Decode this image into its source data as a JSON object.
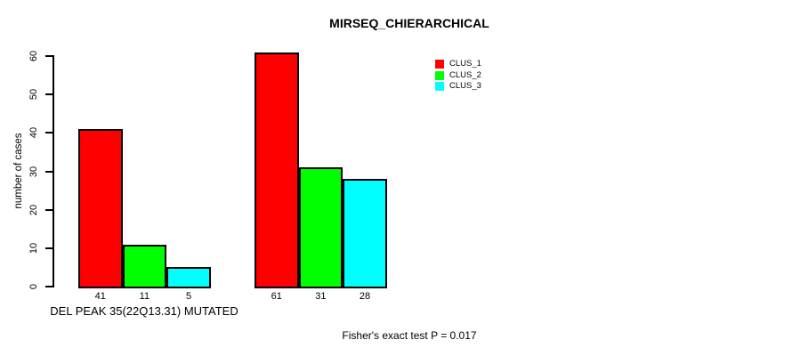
{
  "title": "MIRSEQ_CHIERARCHICAL",
  "y_axis": {
    "label": "number of cases",
    "tick_labels": [
      "0",
      "10",
      "20",
      "30",
      "40",
      "50",
      "60"
    ]
  },
  "footer_note": "Fisher's exact test P = 0.017",
  "chart_data": {
    "type": "bar",
    "title": "MIRSEQ_CHIERARCHICAL",
    "xlabel": "",
    "ylabel": "number of cases",
    "ylim": [
      0,
      60
    ],
    "yticks": [
      0,
      10,
      20,
      30,
      40,
      50,
      60
    ],
    "grid": false,
    "legend_position": "top-right",
    "bar_value_labels_shown": true,
    "series": [
      {
        "name": "CLUS_1",
        "color": "#FF0000",
        "values": [
          41,
          61
        ]
      },
      {
        "name": "CLUS_2",
        "color": "#00FF00",
        "values": [
          11,
          31
        ]
      },
      {
        "name": "CLUS_3",
        "color": "#00FFFF",
        "values": [
          5,
          28
        ]
      }
    ],
    "groups": [
      {
        "label": "DEL PEAK 35(22Q13.31) MUTATED",
        "values": [
          41,
          11,
          5
        ]
      },
      {
        "label": "",
        "values": [
          61,
          31,
          28
        ]
      }
    ],
    "annotation": "Fisher's exact test P = 0.017"
  }
}
